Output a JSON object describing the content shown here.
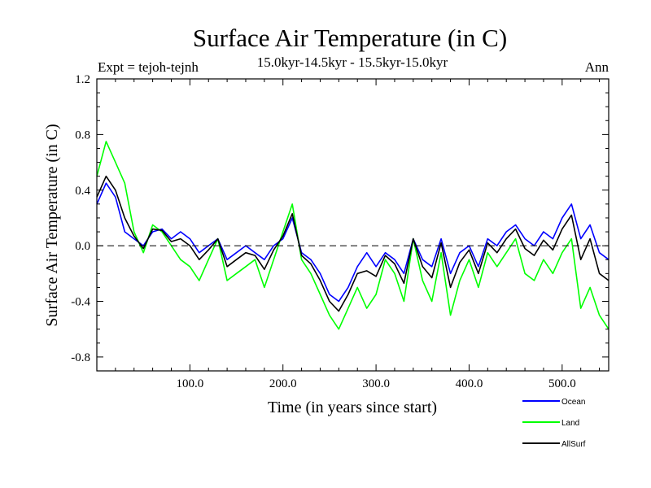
{
  "header": {
    "title": "Surface Air Temperature (in C)",
    "expt": "Expt = tejoh-tejnh",
    "period": "15.0kyr-14.5kyr - 15.5kyr-15.0kyr",
    "season": "Ann"
  },
  "chart_data": {
    "type": "line",
    "title": "Surface Air Temperature (in C)",
    "xlabel": "Time (in years since start)",
    "ylabel": "Surface Air Temperature (in C)",
    "xlim": [
      0,
      550
    ],
    "ylim": [
      -0.9,
      1.2
    ],
    "x_ticks": [
      100,
      200,
      300,
      400,
      500
    ],
    "x_tick_labels": [
      "100.0",
      "200.0",
      "300.0",
      "400.0",
      "500.0"
    ],
    "y_ticks": [
      1.2,
      0.8,
      0.4,
      0.0,
      -0.4,
      -0.8
    ],
    "y_tick_labels": [
      "1.2",
      "0.8",
      "0.4",
      "0.0",
      "-0.4",
      "-0.8"
    ],
    "reference_line": 0.0,
    "x": [
      0,
      10,
      20,
      30,
      40,
      50,
      60,
      70,
      80,
      90,
      100,
      110,
      120,
      130,
      140,
      150,
      160,
      170,
      180,
      190,
      200,
      210,
      220,
      230,
      240,
      250,
      260,
      270,
      280,
      290,
      300,
      310,
      320,
      330,
      340,
      350,
      360,
      370,
      380,
      390,
      400,
      410,
      420,
      430,
      440,
      450,
      460,
      470,
      480,
      490,
      500,
      510,
      520,
      530,
      540,
      550
    ],
    "series": [
      {
        "name": "Ocean",
        "color": "#0000ff",
        "values": [
          0.3,
          0.45,
          0.35,
          0.1,
          0.05,
          0.0,
          0.1,
          0.12,
          0.05,
          0.1,
          0.05,
          -0.05,
          0.0,
          0.05,
          -0.1,
          -0.05,
          0.0,
          -0.05,
          -0.1,
          0.0,
          0.05,
          0.2,
          -0.05,
          -0.1,
          -0.2,
          -0.35,
          -0.4,
          -0.3,
          -0.15,
          -0.05,
          -0.15,
          -0.05,
          -0.1,
          -0.2,
          0.05,
          -0.1,
          -0.15,
          0.05,
          -0.2,
          -0.05,
          0.0,
          -0.15,
          0.05,
          0.0,
          0.1,
          0.15,
          0.05,
          0.0,
          0.1,
          0.05,
          0.2,
          0.3,
          0.05,
          0.15,
          -0.05,
          -0.1
        ]
      },
      {
        "name": "Land",
        "color": "#00ff00",
        "values": [
          0.5,
          0.75,
          0.6,
          0.45,
          0.1,
          -0.05,
          0.15,
          0.1,
          0.0,
          -0.1,
          -0.15,
          -0.25,
          -0.1,
          0.05,
          -0.25,
          -0.2,
          -0.15,
          -0.1,
          -0.3,
          -0.1,
          0.1,
          0.3,
          -0.1,
          -0.2,
          -0.35,
          -0.5,
          -0.6,
          -0.45,
          -0.3,
          -0.45,
          -0.35,
          -0.1,
          -0.2,
          -0.4,
          0.05,
          -0.25,
          -0.4,
          -0.05,
          -0.5,
          -0.25,
          -0.1,
          -0.3,
          -0.05,
          -0.15,
          -0.05,
          0.05,
          -0.2,
          -0.25,
          -0.1,
          -0.2,
          -0.05,
          0.05,
          -0.45,
          -0.3,
          -0.5,
          -0.6
        ]
      },
      {
        "name": "AllSurf",
        "color": "#000000",
        "values": [
          0.35,
          0.5,
          0.4,
          0.2,
          0.07,
          -0.02,
          0.12,
          0.11,
          0.03,
          0.05,
          0.0,
          -0.1,
          -0.03,
          0.05,
          -0.15,
          -0.1,
          -0.05,
          -0.07,
          -0.17,
          -0.03,
          0.07,
          0.23,
          -0.07,
          -0.13,
          -0.25,
          -0.4,
          -0.47,
          -0.35,
          -0.2,
          -0.18,
          -0.22,
          -0.07,
          -0.13,
          -0.27,
          0.05,
          -0.15,
          -0.23,
          0.02,
          -0.3,
          -0.12,
          -0.03,
          -0.2,
          0.02,
          -0.05,
          0.05,
          0.12,
          -0.02,
          -0.07,
          0.04,
          -0.03,
          0.12,
          0.22,
          -0.1,
          0.05,
          -0.2,
          -0.25
        ]
      }
    ],
    "legend_position": "bottom-right"
  }
}
